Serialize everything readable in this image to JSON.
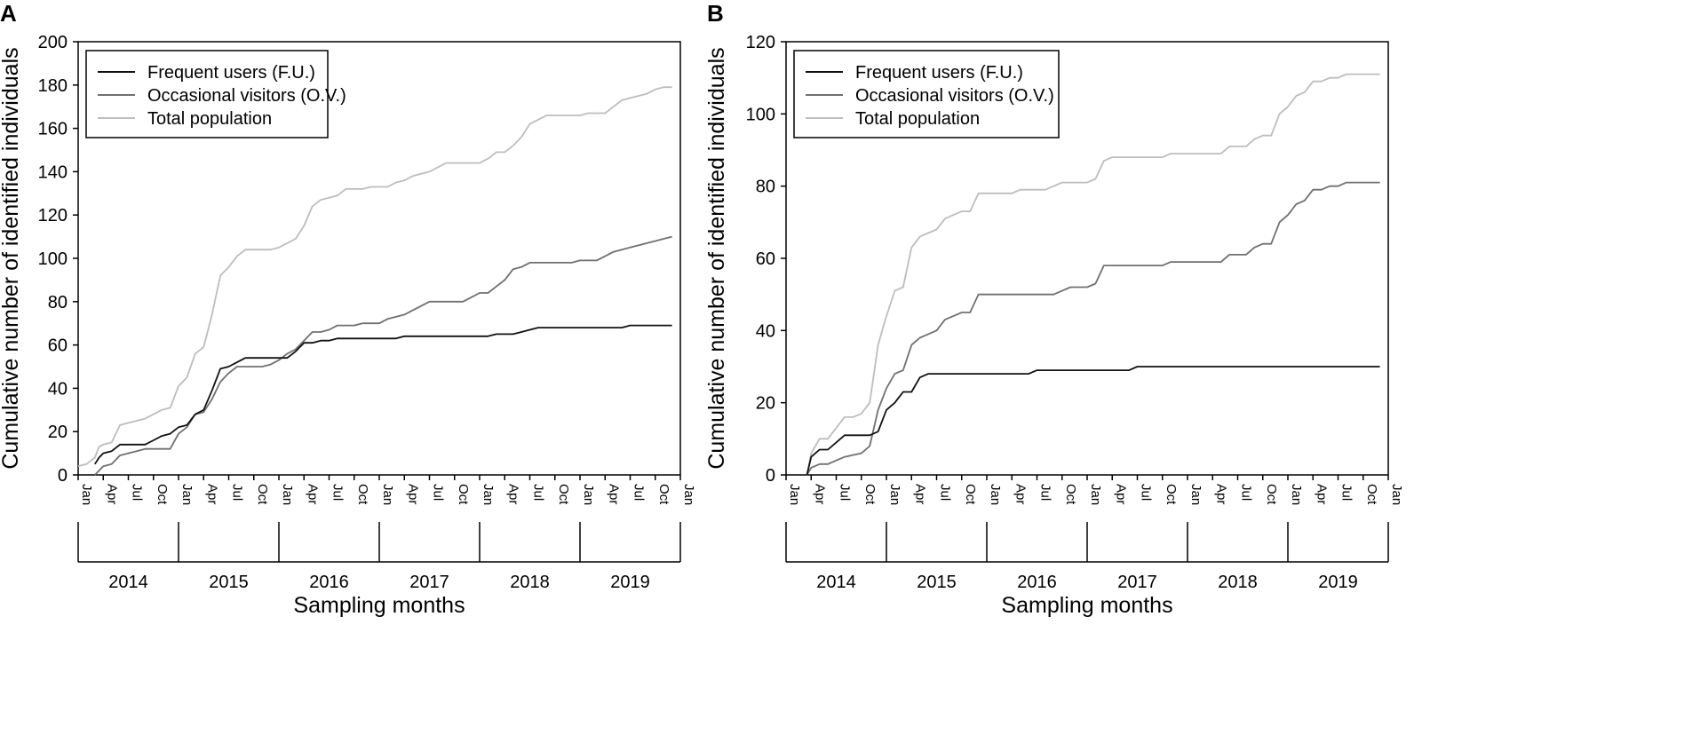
{
  "chart_data": [
    {
      "type": "line",
      "panel_label": "A",
      "title": "",
      "xlabel": "Sampling months",
      "ylabel": "Cumulative number of identified individuals",
      "ylim": [
        0,
        200
      ],
      "yticks": [
        "0",
        "20",
        "40",
        "60",
        "80",
        "100",
        "120",
        "140",
        "160",
        "180",
        "200"
      ],
      "xlim_months": [
        0,
        72
      ],
      "month_ticks": [
        "Jan",
        "Apr",
        "Jul",
        "Oct",
        "Jan",
        "Apr",
        "Jul",
        "Oct",
        "Jan",
        "Apr",
        "Jul",
        "Oct",
        "Jan",
        "Apr",
        "Jul",
        "Oct",
        "Jan",
        "Apr",
        "Jul",
        "Oct",
        "Jan",
        "Apr",
        "Jul",
        "Oct",
        "Jan"
      ],
      "years": [
        "2014",
        "2015",
        "2016",
        "2017",
        "2018",
        "2019"
      ],
      "legend_position": "top-left",
      "series": [
        {
          "name": "Frequent users (F.U.)",
          "color": "#111111",
          "x": [
            2,
            2.5,
            3,
            4,
            5,
            6,
            7,
            8,
            9,
            10,
            11,
            12,
            13,
            14,
            15,
            16,
            17,
            18,
            19,
            20,
            21,
            22,
            23,
            24,
            25,
            26,
            27,
            28,
            29,
            30,
            31,
            32,
            33,
            34,
            35,
            36,
            37,
            38,
            39,
            40,
            41,
            42,
            43,
            44,
            45,
            46,
            47,
            48,
            49,
            50,
            51,
            52,
            53,
            54,
            55,
            56,
            57,
            58,
            59,
            60,
            61,
            62,
            63,
            64,
            65,
            66,
            67,
            68,
            69,
            70,
            71
          ],
          "y": [
            5,
            8,
            10,
            11,
            14,
            14,
            14,
            14,
            16,
            18,
            19,
            22,
            23,
            28,
            30,
            39,
            49,
            50,
            52,
            54,
            54,
            54,
            54,
            54,
            54,
            57,
            61,
            61,
            62,
            62,
            63,
            63,
            63,
            63,
            63,
            63,
            63,
            63,
            64,
            64,
            64,
            64,
            64,
            64,
            64,
            64,
            64,
            64,
            64,
            65,
            65,
            65,
            66,
            67,
            68,
            68,
            68,
            68,
            68,
            68,
            68,
            68,
            68,
            68,
            68,
            69,
            69,
            69,
            69,
            69,
            69
          ]
        },
        {
          "name": "Occasional visitors (O.V.)",
          "color": "#707070",
          "x": [
            2,
            3,
            4,
            5,
            6,
            7,
            8,
            9,
            10,
            11,
            12,
            13,
            14,
            15,
            16,
            17,
            18,
            19,
            20,
            21,
            22,
            23,
            24,
            25,
            26,
            27,
            28,
            29,
            30,
            31,
            32,
            33,
            34,
            35,
            36,
            37,
            38,
            39,
            40,
            41,
            42,
            43,
            44,
            45,
            46,
            47,
            48,
            49,
            50,
            51,
            52,
            53,
            54,
            55,
            56,
            57,
            58,
            59,
            60,
            61,
            62,
            63,
            64,
            65,
            66,
            67,
            68,
            69,
            70,
            71
          ],
          "y": [
            0,
            4,
            5,
            9,
            10,
            11,
            12,
            12,
            12,
            12,
            19,
            22,
            28,
            29,
            35,
            43,
            47,
            50,
            50,
            50,
            50,
            51,
            53,
            56,
            58,
            62,
            66,
            66,
            67,
            69,
            69,
            69,
            70,
            70,
            70,
            72,
            73,
            74,
            76,
            78,
            80,
            80,
            80,
            80,
            80,
            82,
            84,
            84,
            87,
            90,
            95,
            96,
            98,
            98,
            98,
            98,
            98,
            98,
            99,
            99,
            99,
            101,
            103,
            104,
            105,
            106,
            107,
            108,
            109,
            110
          ]
        },
        {
          "name": "Total population",
          "color": "#bdbdbd",
          "x": [
            0,
            1,
            2,
            2.5,
            3,
            4,
            5,
            6,
            7,
            8,
            9,
            10,
            11,
            12,
            13,
            14,
            15,
            16,
            17,
            18,
            19,
            20,
            21,
            22,
            23,
            24,
            25,
            26,
            27,
            28,
            29,
            30,
            31,
            32,
            33,
            34,
            35,
            36,
            37,
            38,
            39,
            40,
            41,
            42,
            43,
            44,
            45,
            46,
            47,
            48,
            49,
            50,
            51,
            52,
            53,
            54,
            55,
            56,
            57,
            58,
            59,
            60,
            61,
            62,
            63,
            64,
            65,
            66,
            67,
            68,
            69,
            70,
            71
          ],
          "y": [
            4,
            5,
            8,
            13,
            14,
            15,
            23,
            24,
            25,
            26,
            28,
            30,
            31,
            41,
            45,
            56,
            59,
            74,
            92,
            96,
            101,
            104,
            104,
            104,
            104,
            105,
            107,
            109,
            115,
            124,
            127,
            128,
            129,
            132,
            132,
            132,
            133,
            133,
            133,
            135,
            136,
            138,
            139,
            140,
            142,
            144,
            144,
            144,
            144,
            144,
            146,
            149,
            149,
            152,
            156,
            162,
            164,
            166,
            166,
            166,
            166,
            166,
            167,
            167,
            167,
            170,
            173,
            174,
            175,
            176,
            178,
            179,
            179
          ]
        }
      ]
    },
    {
      "type": "line",
      "panel_label": "B",
      "title": "",
      "xlabel": "Sampling months",
      "ylabel": "Cumulative number of identified individuals",
      "ylim": [
        0,
        120
      ],
      "yticks": [
        "0",
        "20",
        "40",
        "60",
        "80",
        "100",
        "120"
      ],
      "xlim_months": [
        0,
        72
      ],
      "month_ticks": [
        "Jan",
        "Apr",
        "Jul",
        "Oct",
        "Jan",
        "Apr",
        "Jul",
        "Oct",
        "Jan",
        "Apr",
        "Jul",
        "Oct",
        "Jan",
        "Apr",
        "Jul",
        "Oct",
        "Jan",
        "Apr",
        "Jul",
        "Oct",
        "Jan",
        "Apr",
        "Jul",
        "Oct",
        "Jan"
      ],
      "years": [
        "2014",
        "2015",
        "2016",
        "2017",
        "2018",
        "2019"
      ],
      "legend_position": "top-left",
      "series": [
        {
          "name": "Frequent users (F.U.)",
          "color": "#111111",
          "x": [
            2.5,
            3,
            4,
            5,
            6,
            7,
            8,
            9,
            10,
            11,
            12,
            13,
            14,
            15,
            16,
            17,
            18,
            19,
            20,
            21,
            22,
            23,
            24,
            25,
            26,
            27,
            28,
            29,
            30,
            31,
            32,
            33,
            34,
            35,
            36,
            37,
            38,
            39,
            40,
            41,
            42,
            43,
            44,
            45,
            46,
            47,
            48,
            49,
            50,
            51,
            52,
            53,
            54,
            55,
            56,
            57,
            58,
            59,
            60,
            61,
            62,
            63,
            64,
            65,
            66,
            67,
            68,
            69,
            70,
            71
          ],
          "y": [
            0,
            5,
            7,
            7,
            9,
            11,
            11,
            11,
            11,
            12,
            18,
            20,
            23,
            23,
            27,
            28,
            28,
            28,
            28,
            28,
            28,
            28,
            28,
            28,
            28,
            28,
            28,
            28,
            29,
            29,
            29,
            29,
            29,
            29,
            29,
            29,
            29,
            29,
            29,
            29,
            30,
            30,
            30,
            30,
            30,
            30,
            30,
            30,
            30,
            30,
            30,
            30,
            30,
            30,
            30,
            30,
            30,
            30,
            30,
            30,
            30,
            30,
            30,
            30,
            30,
            30,
            30,
            30,
            30,
            30
          ]
        },
        {
          "name": "Occasional visitors (O.V.)",
          "color": "#707070",
          "x": [
            2.5,
            3,
            4,
            5,
            6,
            7,
            8,
            9,
            10,
            11,
            12,
            13,
            14,
            15,
            16,
            17,
            18,
            19,
            20,
            21,
            22,
            23,
            24,
            25,
            26,
            27,
            28,
            29,
            30,
            31,
            32,
            33,
            34,
            35,
            36,
            37,
            38,
            39,
            40,
            41,
            42,
            43,
            44,
            45,
            46,
            47,
            48,
            49,
            50,
            51,
            52,
            53,
            54,
            55,
            56,
            57,
            58,
            59,
            60,
            61,
            62,
            63,
            64,
            65,
            66,
            67,
            68,
            69,
            70,
            71
          ],
          "y": [
            0,
            2,
            3,
            3,
            4,
            5,
            5.5,
            6,
            8,
            18,
            24,
            28,
            29,
            36,
            38,
            39,
            40,
            43,
            44,
            45,
            45,
            50,
            50,
            50,
            50,
            50,
            50,
            50,
            50,
            50,
            50,
            51,
            52,
            52,
            52,
            53,
            58,
            58,
            58,
            58,
            58,
            58,
            58,
            58,
            59,
            59,
            59,
            59,
            59,
            59,
            59,
            61,
            61,
            61,
            63,
            64,
            64,
            70,
            72,
            75,
            76,
            79,
            79,
            80,
            80,
            81,
            81,
            81,
            81,
            81
          ]
        },
        {
          "name": "Total population",
          "color": "#bdbdbd",
          "x": [
            2.5,
            3,
            4,
            5,
            6,
            7,
            8,
            9,
            10,
            11,
            12,
            13,
            14,
            15,
            16,
            17,
            18,
            19,
            20,
            21,
            22,
            23,
            24,
            25,
            26,
            27,
            28,
            29,
            30,
            31,
            32,
            33,
            34,
            35,
            36,
            37,
            38,
            39,
            40,
            41,
            42,
            43,
            44,
            45,
            46,
            47,
            48,
            49,
            50,
            51,
            52,
            53,
            54,
            55,
            56,
            57,
            58,
            59,
            60,
            61,
            62,
            63,
            64,
            65,
            66,
            67,
            68,
            69,
            70,
            71
          ],
          "y": [
            0,
            6,
            10,
            10,
            13,
            16,
            16,
            17,
            20,
            36,
            44,
            51,
            52,
            63,
            66,
            67,
            68,
            71,
            72,
            73,
            73,
            78,
            78,
            78,
            78,
            78,
            79,
            79,
            79,
            79,
            80,
            81,
            81,
            81,
            81,
            82,
            87,
            88,
            88,
            88,
            88,
            88,
            88,
            88,
            89,
            89,
            89,
            89,
            89,
            89,
            89,
            91,
            91,
            91,
            93,
            94,
            94,
            100,
            102,
            105,
            106,
            109,
            109,
            110,
            110,
            111,
            111,
            111,
            111,
            111
          ]
        }
      ]
    }
  ]
}
